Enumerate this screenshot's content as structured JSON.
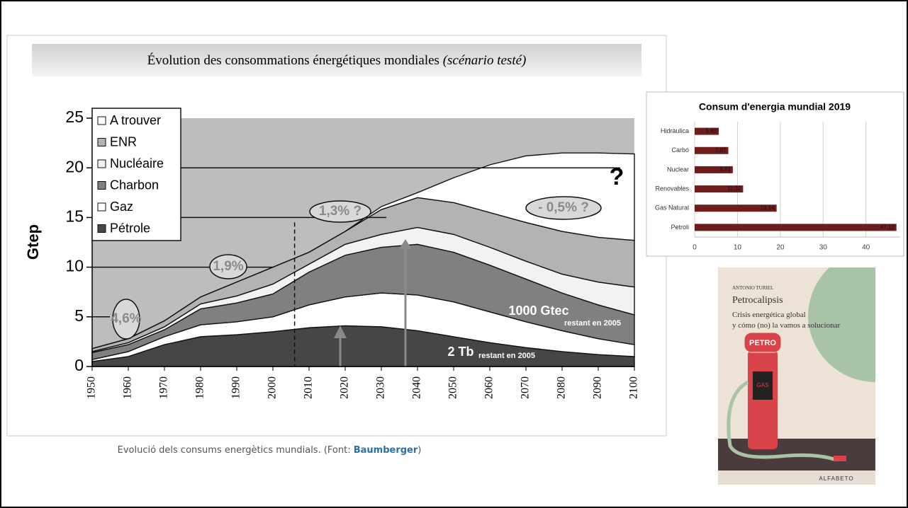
{
  "chart_data": [
    {
      "type": "stacked_area",
      "title": "Évolution des consommations énergétiques mondiales",
      "subtitle": "(scénario testé)",
      "y_label": "Gtep",
      "x": [
        1950,
        1960,
        1970,
        1980,
        1990,
        2000,
        2010,
        2020,
        2030,
        2040,
        2050,
        2060,
        2070,
        2080,
        2090,
        2100
      ],
      "series": [
        {
          "name": "Pétrole",
          "color": "#464646",
          "values": [
            0.5,
            1.0,
            2.2,
            3.0,
            3.2,
            3.5,
            3.9,
            4.1,
            4.0,
            3.6,
            3.0,
            2.4,
            1.9,
            1.5,
            1.2,
            1.0
          ]
        },
        {
          "name": "Gaz",
          "color": "#ffffff",
          "values": [
            0.2,
            0.5,
            0.8,
            1.2,
            1.3,
            1.5,
            2.3,
            2.9,
            3.4,
            3.6,
            3.5,
            3.1,
            2.6,
            2.1,
            1.6,
            1.2
          ]
        },
        {
          "name": "Charbon",
          "color": "#808080",
          "values": [
            0.7,
            0.7,
            0.7,
            1.6,
            1.9,
            2.3,
            3.3,
            4.2,
            4.6,
            5.1,
            5.0,
            4.7,
            4.3,
            3.8,
            3.4,
            3.0
          ]
        },
        {
          "name": "Nucléaire",
          "color": "#f2f2f2",
          "values": [
            0.1,
            0.2,
            0.3,
            0.5,
            0.7,
            1.0,
            0.8,
            1.1,
            1.3,
            1.7,
            1.8,
            1.8,
            1.8,
            1.9,
            2.3,
            2.8
          ]
        },
        {
          "name": "ENR",
          "color": "#b3b3b3",
          "values": [
            0.3,
            0.4,
            0.6,
            0.7,
            1.4,
            1.7,
            1.2,
            1.3,
            2.5,
            3.0,
            3.2,
            3.5,
            3.9,
            4.3,
            4.5,
            4.7
          ]
        },
        {
          "name": "A trouver",
          "color": "#ffffff",
          "values": [
            0,
            0,
            0,
            0,
            0,
            0,
            0,
            0,
            0.3,
            0.5,
            2.5,
            4.8,
            6.7,
            7.9,
            8.5,
            8.7
          ]
        }
      ],
      "xlim": [
        1950,
        2100
      ],
      "xticks": [
        1950,
        1960,
        1970,
        1980,
        1990,
        2000,
        2010,
        2020,
        2030,
        2040,
        2050,
        2060,
        2070,
        2080,
        2090,
        2100
      ],
      "ylim": [
        0,
        25
      ],
      "yticks": [
        0,
        5,
        10,
        15,
        20,
        25
      ],
      "legend": "upper left",
      "annotations": [
        "4,6%",
        "1,9%",
        "1,3% ?",
        "- 0,5% ?",
        "?",
        "1000 Gtec",
        "restant en 2005",
        "2 Tb",
        "restant en 2005"
      ]
    },
    {
      "type": "barh",
      "title": "Consum d'energia mundial 2019",
      "categories": [
        "Hidràulica",
        "Carbó",
        "Nuclear",
        "Renovables",
        "Gas Natural",
        "Petroli"
      ],
      "values": [
        5.63,
        7.87,
        8.91,
        11.32,
        19.14,
        47.13
      ],
      "value_labels": [
        "5,63",
        "7,87",
        "8,91",
        "11,32",
        "19,14",
        "47,13"
      ],
      "color": "#6e1d1d",
      "xlim": [
        0,
        48
      ],
      "xticks": [
        0,
        10,
        20,
        30,
        40
      ],
      "grid": true
    }
  ],
  "caption": {
    "text": "Evolució dels consums energètics mundials. (Font: ",
    "link": "Baumberger",
    "end": ")"
  },
  "book": {
    "author": "ANTONIO TURIEL",
    "title": "Petrocalipsis",
    "subtitle_1": "Crisis energética global",
    "subtitle_2": "y cómo (no) la vamos a solucionar",
    "pump_top": "PETRO",
    "pump_label": "GAS",
    "publisher": "ALFABETO"
  }
}
